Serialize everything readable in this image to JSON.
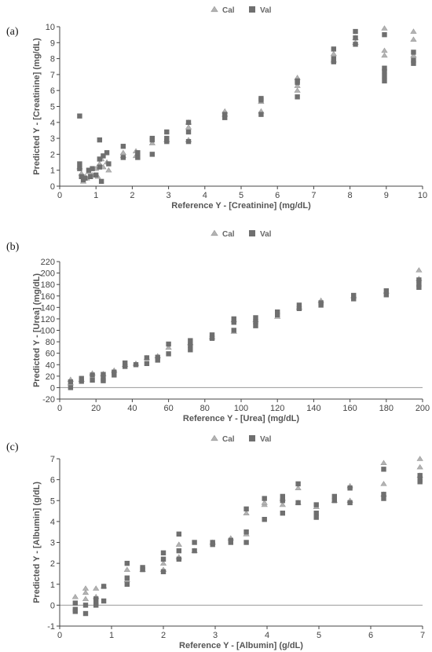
{
  "colors": {
    "cal": "#b3b3b3",
    "val": "#6f6f6f",
    "axis": "#444444",
    "zero_line": "#9a9a9a"
  },
  "chart_data": [
    {
      "type": "scatter",
      "panel_label": "(a)",
      "xlabel": "Reference Y - [Creatinine] (mg/dL)",
      "ylabel": "Predicted Y - [Creatinine] (mg/dL)",
      "xlim": [
        0,
        10
      ],
      "ylim": [
        0,
        10
      ],
      "xticks": [
        0,
        1,
        2,
        3,
        4,
        5,
        6,
        7,
        8,
        9,
        10
      ],
      "yticks": [
        0,
        1,
        2,
        3,
        4,
        5,
        6,
        7,
        8,
        9,
        10
      ],
      "zero_line": false,
      "legend": [
        "Cal",
        "Val"
      ],
      "series": [
        {
          "name": "Cal",
          "marker": "triangle",
          "points": [
            [
              0.55,
              1.2
            ],
            [
              0.6,
              0.8
            ],
            [
              0.65,
              0.3
            ],
            [
              0.7,
              0.6
            ],
            [
              0.75,
              0.5
            ],
            [
              0.8,
              0.9
            ],
            [
              0.9,
              0.7
            ],
            [
              1.0,
              1.1
            ],
            [
              1.05,
              0.6
            ],
            [
              1.1,
              1.4
            ],
            [
              1.15,
              1.7
            ],
            [
              1.2,
              1.2
            ],
            [
              1.3,
              1.5
            ],
            [
              1.35,
              1.0
            ],
            [
              1.75,
              1.9
            ],
            [
              1.75,
              2.1
            ],
            [
              2.1,
              1.9
            ],
            [
              2.1,
              2.2
            ],
            [
              2.55,
              2.7
            ],
            [
              2.95,
              2.9
            ],
            [
              3.55,
              3.7
            ],
            [
              3.55,
              4.0
            ],
            [
              3.55,
              2.9
            ],
            [
              4.55,
              4.5
            ],
            [
              4.55,
              4.7
            ],
            [
              5.55,
              4.7
            ],
            [
              5.55,
              5.3
            ],
            [
              6.55,
              6.0
            ],
            [
              6.55,
              6.3
            ],
            [
              6.55,
              6.8
            ],
            [
              7.55,
              7.9
            ],
            [
              7.55,
              8.3
            ],
            [
              8.15,
              9.0
            ],
            [
              8.15,
              9.3
            ],
            [
              8.95,
              8.5
            ],
            [
              8.95,
              9.9
            ],
            [
              8.95,
              8.2
            ],
            [
              9.75,
              9.2
            ],
            [
              9.75,
              9.7
            ],
            [
              9.75,
              8.2
            ]
          ]
        },
        {
          "name": "Val",
          "marker": "square",
          "points": [
            [
              0.55,
              4.4
            ],
            [
              0.55,
              1.4
            ],
            [
              0.55,
              1.1
            ],
            [
              0.6,
              0.6
            ],
            [
              0.65,
              0.4
            ],
            [
              0.7,
              0.5
            ],
            [
              0.8,
              1.0
            ],
            [
              0.85,
              0.6
            ],
            [
              0.9,
              1.1
            ],
            [
              1.0,
              0.7
            ],
            [
              1.1,
              2.9
            ],
            [
              1.1,
              1.7
            ],
            [
              1.1,
              1.2
            ],
            [
              1.15,
              0.3
            ],
            [
              1.2,
              1.9
            ],
            [
              1.3,
              2.1
            ],
            [
              1.35,
              1.4
            ],
            [
              1.75,
              2.5
            ],
            [
              1.75,
              1.8
            ],
            [
              2.15,
              2.1
            ],
            [
              2.15,
              1.8
            ],
            [
              2.55,
              3.0
            ],
            [
              2.55,
              2.9
            ],
            [
              2.55,
              2.0
            ],
            [
              2.95,
              3.4
            ],
            [
              2.95,
              3.0
            ],
            [
              2.95,
              2.8
            ],
            [
              3.55,
              4.0
            ],
            [
              3.55,
              3.4
            ],
            [
              3.55,
              2.8
            ],
            [
              4.55,
              4.3
            ],
            [
              4.55,
              4.5
            ],
            [
              5.55,
              5.4
            ],
            [
              5.55,
              5.5
            ],
            [
              5.55,
              4.5
            ],
            [
              6.55,
              6.5
            ],
            [
              6.55,
              6.6
            ],
            [
              6.55,
              5.6
            ],
            [
              7.55,
              8.6
            ],
            [
              7.55,
              8.0
            ],
            [
              7.55,
              7.8
            ],
            [
              8.15,
              9.7
            ],
            [
              8.15,
              9.3
            ],
            [
              8.15,
              8.9
            ],
            [
              8.95,
              9.5
            ],
            [
              8.95,
              7.4
            ],
            [
              8.95,
              7.2
            ],
            [
              8.95,
              6.9
            ],
            [
              8.95,
              6.6
            ],
            [
              9.75,
              8.4
            ],
            [
              9.75,
              7.9
            ],
            [
              9.75,
              7.7
            ]
          ]
        }
      ]
    },
    {
      "type": "scatter",
      "panel_label": "(b)",
      "xlabel": "Reference Y - [Urea] (mg/dL)",
      "ylabel": "Predicted Y - [Urea] (mg/dL)",
      "xlim": [
        0,
        200
      ],
      "ylim": [
        -20,
        220
      ],
      "xticks": [
        0,
        20,
        40,
        60,
        80,
        100,
        120,
        140,
        160,
        180,
        200
      ],
      "yticks": [
        -20,
        0,
        20,
        40,
        60,
        80,
        100,
        120,
        140,
        160,
        180,
        200,
        220
      ],
      "zero_line": true,
      "legend": [
        "Cal",
        "Val"
      ],
      "series": [
        {
          "name": "Cal",
          "marker": "triangle",
          "points": [
            [
              6,
              14
            ],
            [
              6,
              8
            ],
            [
              12,
              14
            ],
            [
              18,
              25
            ],
            [
              24,
              24
            ],
            [
              30,
              30
            ],
            [
              36,
              40
            ],
            [
              42,
              42
            ],
            [
              48,
              52
            ],
            [
              54,
              55
            ],
            [
              60,
              70
            ],
            [
              72,
              78
            ],
            [
              84,
              88
            ],
            [
              96,
              98
            ],
            [
              96,
              118
            ],
            [
              108,
              118
            ],
            [
              120,
              124
            ],
            [
              132,
              140
            ],
            [
              144,
              152
            ],
            [
              162,
              160
            ],
            [
              180,
              168
            ],
            [
              198,
              205
            ],
            [
              198,
              190
            ]
          ]
        },
        {
          "name": "Val",
          "marker": "square",
          "points": [
            [
              6,
              10
            ],
            [
              6,
              0
            ],
            [
              12,
              16
            ],
            [
              12,
              11
            ],
            [
              18,
              22
            ],
            [
              18,
              13
            ],
            [
              24,
              23
            ],
            [
              24,
              15
            ],
            [
              24,
              12
            ],
            [
              30,
              27
            ],
            [
              30,
              22
            ],
            [
              36,
              43
            ],
            [
              36,
              37
            ],
            [
              42,
              40
            ],
            [
              48,
              52
            ],
            [
              48,
              42
            ],
            [
              54,
              53
            ],
            [
              54,
              48
            ],
            [
              60,
              76
            ],
            [
              60,
              59
            ],
            [
              72,
              82
            ],
            [
              72,
              74
            ],
            [
              72,
              66
            ],
            [
              84,
              92
            ],
            [
              84,
              86
            ],
            [
              96,
              120
            ],
            [
              96,
              114
            ],
            [
              96,
              100
            ],
            [
              108,
              122
            ],
            [
              108,
              115
            ],
            [
              108,
              108
            ],
            [
              120,
              132
            ],
            [
              120,
              127
            ],
            [
              132,
              144
            ],
            [
              132,
              138
            ],
            [
              144,
              148
            ],
            [
              144,
              144
            ],
            [
              162,
              161
            ],
            [
              162,
              155
            ],
            [
              180,
              169
            ],
            [
              180,
              162
            ],
            [
              198,
              188
            ],
            [
              198,
              180
            ],
            [
              198,
              175
            ]
          ]
        }
      ]
    },
    {
      "type": "scatter",
      "panel_label": "(c)",
      "xlabel": "Reference Y - [Albumin] (g/dL)",
      "ylabel": "Predicted Y - [Albumin] (g/dL)",
      "xlim": [
        0,
        7
      ],
      "ylim": [
        -1,
        7
      ],
      "xticks": [
        0,
        1,
        2,
        3,
        4,
        5,
        6,
        7
      ],
      "yticks": [
        -1,
        0,
        1,
        2,
        3,
        4,
        5,
        6,
        7
      ],
      "zero_line": true,
      "legend": [
        "Cal",
        "Val"
      ],
      "series": [
        {
          "name": "Cal",
          "marker": "triangle",
          "points": [
            [
              0.3,
              0.4
            ],
            [
              0.5,
              0.8
            ],
            [
              0.5,
              0.6
            ],
            [
              0.5,
              0.3
            ],
            [
              0.7,
              0.8
            ],
            [
              0.7,
              0.4
            ],
            [
              0.85,
              0.9
            ],
            [
              1.3,
              1.7
            ],
            [
              1.3,
              1.2
            ],
            [
              1.6,
              1.7
            ],
            [
              2.0,
              2.0
            ],
            [
              2.0,
              1.7
            ],
            [
              2.3,
              2.9
            ],
            [
              2.3,
              2.3
            ],
            [
              2.6,
              2.6
            ],
            [
              2.95,
              3.0
            ],
            [
              3.3,
              3.2
            ],
            [
              3.6,
              4.4
            ],
            [
              3.6,
              3.4
            ],
            [
              3.95,
              4.8
            ],
            [
              3.95,
              4.9
            ],
            [
              4.3,
              4.8
            ],
            [
              4.3,
              5.1
            ],
            [
              4.6,
              5.6
            ],
            [
              4.6,
              4.9
            ],
            [
              4.95,
              4.7
            ],
            [
              5.3,
              5.0
            ],
            [
              5.6,
              5.7
            ],
            [
              5.6,
              5.0
            ],
            [
              6.25,
              6.8
            ],
            [
              6.25,
              5.8
            ],
            [
              6.25,
              5.3
            ],
            [
              6.95,
              7.0
            ],
            [
              6.95,
              6.6
            ],
            [
              6.95,
              6.2
            ]
          ]
        },
        {
          "name": "Val",
          "marker": "square",
          "points": [
            [
              0.3,
              0.1
            ],
            [
              0.3,
              -0.2
            ],
            [
              0.3,
              -0.3
            ],
            [
              0.5,
              0.0
            ],
            [
              0.5,
              -0.4
            ],
            [
              0.7,
              0.3
            ],
            [
              0.7,
              0.1
            ],
            [
              0.7,
              0.0
            ],
            [
              0.85,
              0.9
            ],
            [
              0.85,
              0.2
            ],
            [
              1.3,
              2.0
            ],
            [
              1.3,
              1.3
            ],
            [
              1.3,
              1.0
            ],
            [
              1.6,
              1.8
            ],
            [
              1.6,
              1.7
            ],
            [
              2.0,
              2.5
            ],
            [
              2.0,
              2.2
            ],
            [
              2.0,
              1.6
            ],
            [
              2.3,
              3.4
            ],
            [
              2.3,
              2.6
            ],
            [
              2.3,
              2.2
            ],
            [
              2.6,
              3.0
            ],
            [
              2.6,
              2.6
            ],
            [
              2.95,
              3.0
            ],
            [
              2.95,
              2.9
            ],
            [
              3.3,
              3.0
            ],
            [
              3.3,
              3.1
            ],
            [
              3.6,
              4.6
            ],
            [
              3.6,
              3.5
            ],
            [
              3.6,
              3.0
            ],
            [
              3.95,
              5.1
            ],
            [
              3.95,
              4.1
            ],
            [
              4.3,
              5.2
            ],
            [
              4.3,
              5.0
            ],
            [
              4.3,
              4.4
            ],
            [
              4.6,
              5.8
            ],
            [
              4.6,
              4.9
            ],
            [
              4.95,
              4.8
            ],
            [
              4.95,
              4.4
            ],
            [
              4.95,
              4.2
            ],
            [
              5.3,
              5.2
            ],
            [
              5.3,
              5.0
            ],
            [
              5.6,
              5.6
            ],
            [
              5.6,
              4.9
            ],
            [
              6.25,
              6.5
            ],
            [
              6.25,
              5.3
            ],
            [
              6.25,
              5.1
            ],
            [
              6.95,
              6.2
            ],
            [
              6.95,
              6.0
            ],
            [
              6.95,
              5.9
            ]
          ]
        }
      ]
    }
  ]
}
